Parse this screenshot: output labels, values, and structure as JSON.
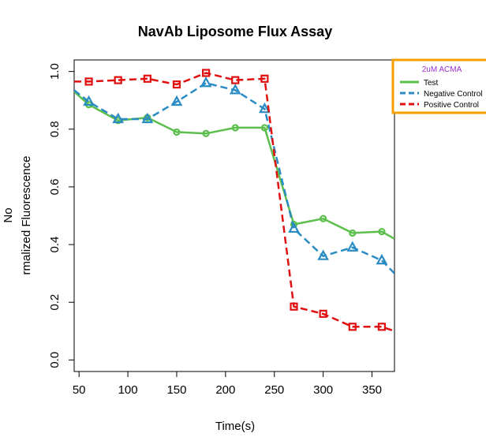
{
  "chart_data": {
    "type": "line",
    "title": "NavAb Liposome Flux Assay",
    "xlabel": "Time(s)",
    "ylabel_line1": "No",
    "ylabel_line2": "rmalized Fluorescence",
    "xlim": [
      45,
      373
    ],
    "ylim": [
      -0.04,
      1.04
    ],
    "xticks": [
      50,
      100,
      150,
      200,
      250,
      300,
      350
    ],
    "yticks": [
      0.0,
      0.2,
      0.4,
      0.6,
      0.8,
      1.0
    ],
    "ytick_labels": [
      "0.0",
      "0.2",
      "0.4",
      "0.6",
      "0.8",
      "1.0"
    ],
    "legend": {
      "title": "2uM ACMA",
      "title_color": "#9b30d0",
      "border_color": "#f5a000",
      "position": "top-right",
      "entries": [
        "Test",
        "Negative Control",
        "Positive Control"
      ]
    },
    "series": [
      {
        "name": "Test",
        "color": "#5cbf4c",
        "dash": "solid",
        "marker": "circle",
        "x": [
          60,
          90,
          120,
          150,
          180,
          210,
          240,
          270,
          300,
          330,
          360
        ],
        "y": [
          0.885,
          0.83,
          0.84,
          0.79,
          0.785,
          0.805,
          0.805,
          0.47,
          0.49,
          0.44,
          0.445
        ],
        "start": {
          "x": 45,
          "y": 0.93
        },
        "end": {
          "x": 373,
          "y": 0.42
        }
      },
      {
        "name": "Negative Control",
        "color": "#2b8cc4",
        "dash": "dashed",
        "marker": "triangle",
        "x": [
          60,
          90,
          120,
          150,
          180,
          210,
          240,
          270,
          300,
          330,
          360
        ],
        "y": [
          0.895,
          0.835,
          0.835,
          0.895,
          0.96,
          0.935,
          0.87,
          0.455,
          0.36,
          0.39,
          0.345
        ],
        "start": {
          "x": 45,
          "y": 0.935
        },
        "end": {
          "x": 373,
          "y": 0.3
        }
      },
      {
        "name": "Positive Control",
        "color": "#e01010",
        "dash": "dashed",
        "marker": "square",
        "x": [
          60,
          90,
          120,
          150,
          180,
          210,
          240,
          270,
          300,
          330,
          360
        ],
        "y": [
          0.965,
          0.97,
          0.975,
          0.955,
          0.995,
          0.97,
          0.975,
          0.185,
          0.16,
          0.115,
          0.115
        ],
        "start": {
          "x": 45,
          "y": 0.965
        },
        "end": {
          "x": 373,
          "y": 0.1
        }
      }
    ]
  }
}
